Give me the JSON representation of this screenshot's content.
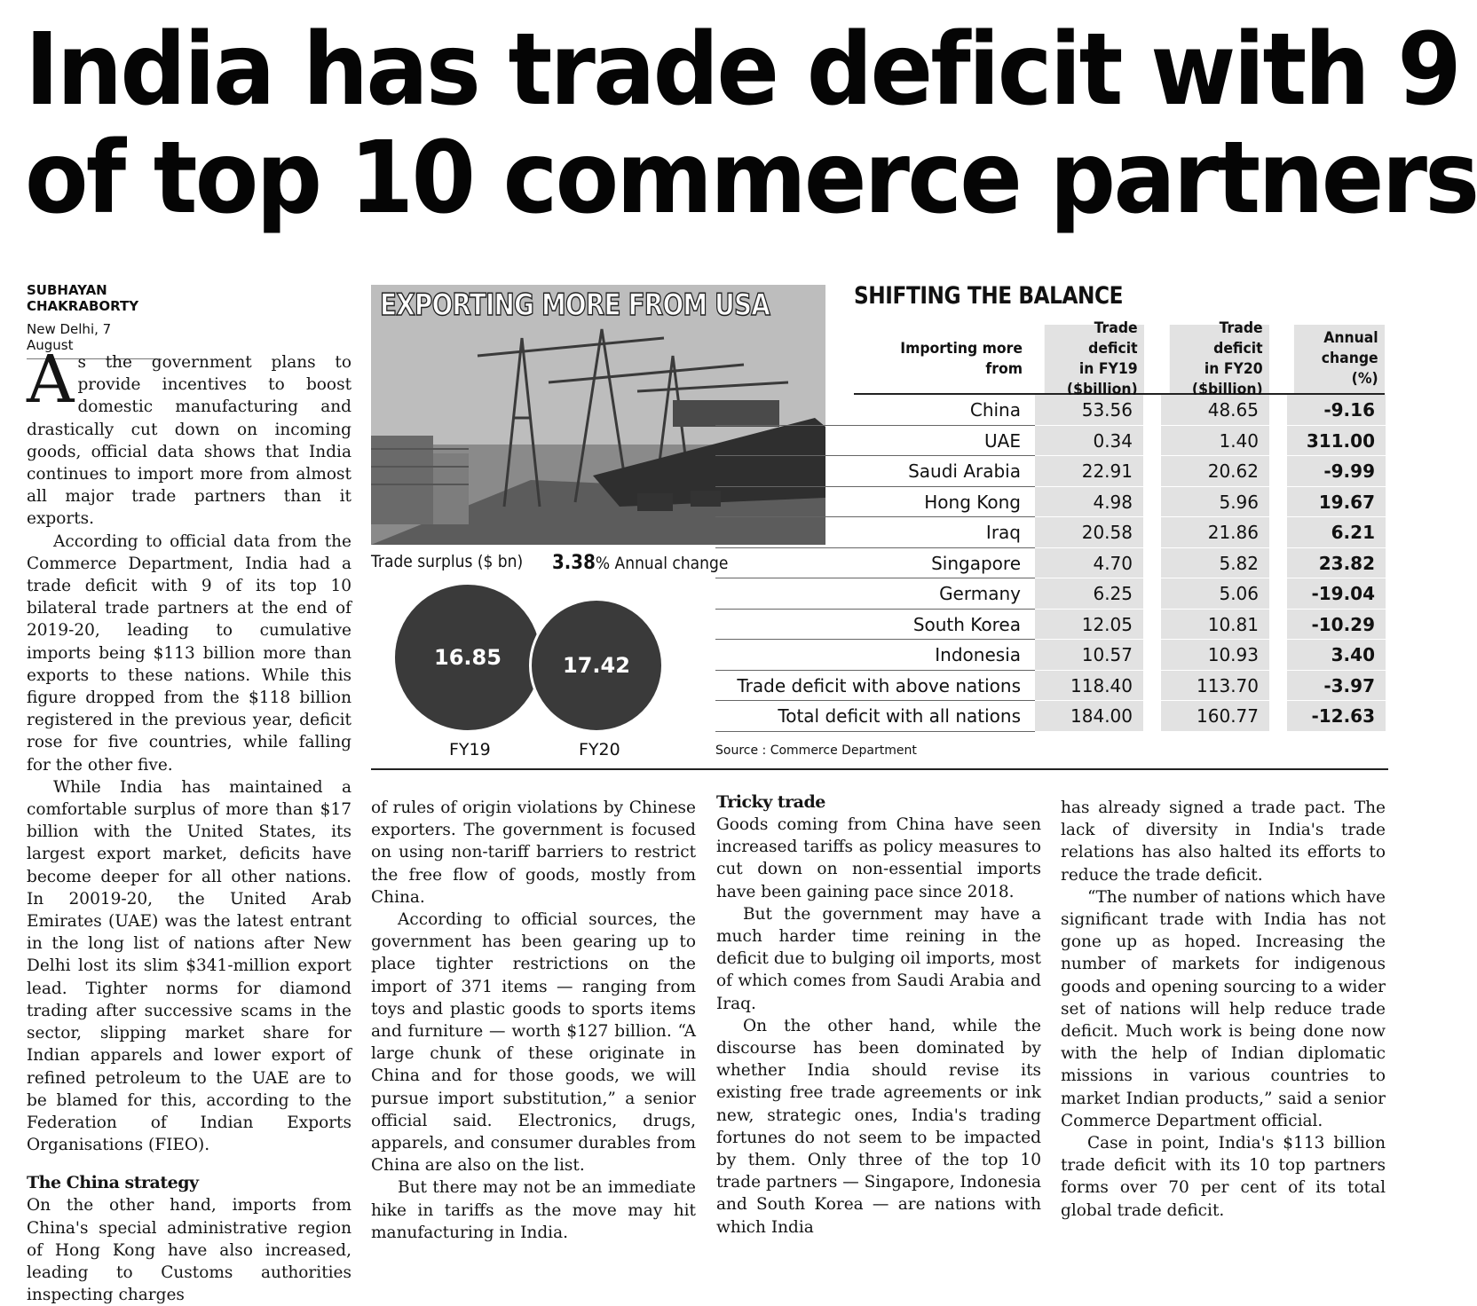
{
  "headline": {
    "line1": "India has trade deficit with 9",
    "line2": "of top 10 commerce partners"
  },
  "byline": {
    "author": "SUBHAYAN CHAKRABORTY",
    "dateline": "New Delhi, 7 August"
  },
  "photo": {
    "title": "EXPORTING MORE FROM USA"
  },
  "surplus": {
    "label": "Trade surplus ($ bn)",
    "change_value": "3.38",
    "change_unit": "%",
    "change_label": " Annual change",
    "fy19_value": "16.85",
    "fy20_value": "17.42",
    "fy19_label": "FY19",
    "fy20_label": "FY20"
  },
  "table": {
    "title": "SHIFTING THE BALANCE",
    "headers": {
      "country": "Importing more from",
      "fy19_l1": "Trade deficit",
      "fy19_l2": "in FY19",
      "fy19_l3": "($billion)",
      "fy20_l1": "Trade deficit",
      "fy20_l2": "in FY20",
      "fy20_l3": "($billion)",
      "chg_l1": "Annual",
      "chg_l2": "change",
      "chg_l3": "(%)"
    },
    "rows": [
      {
        "country": "China",
        "fy19": "53.56",
        "fy20": "48.65",
        "change": "-9.16"
      },
      {
        "country": "UAE",
        "fy19": "0.34",
        "fy20": "1.40",
        "change": "311.00"
      },
      {
        "country": "Saudi Arabia",
        "fy19": "22.91",
        "fy20": "20.62",
        "change": "-9.99"
      },
      {
        "country": "Hong Kong",
        "fy19": "4.98",
        "fy20": "5.96",
        "change": "19.67"
      },
      {
        "country": "Iraq",
        "fy19": "20.58",
        "fy20": "21.86",
        "change": "6.21"
      },
      {
        "country": "Singapore",
        "fy19": "4.70",
        "fy20": "5.82",
        "change": "23.82"
      },
      {
        "country": "Germany",
        "fy19": "6.25",
        "fy20": "5.06",
        "change": "-19.04"
      },
      {
        "country": "South Korea",
        "fy19": "12.05",
        "fy20": "10.81",
        "change": "-10.29"
      },
      {
        "country": "Indonesia",
        "fy19": "10.57",
        "fy20": "10.93",
        "change": "3.40"
      },
      {
        "country": "Trade deficit with above nations",
        "fy19": "118.40",
        "fy20": "113.70",
        "change": "-3.97"
      },
      {
        "country": "Total deficit with all nations",
        "fy19": "184.00",
        "fy20": "160.77",
        "change": "-12.63"
      }
    ],
    "source": "Source : Commerce Department"
  },
  "article": {
    "col1": {
      "dropcap": "A",
      "p1": "s the government plans to provide incentives to boost domestic manufacturing and drastically cut down on incoming goods, official data shows that India continues to import more from almost all major trade partners than it exports.",
      "p2": "According to official data from the Commerce Department, India had a trade deficit with 9 of its top 10 bilateral trade partners at the end of 2019-20, leading to cumulative imports being $113 billion more than exports to these nations. While this figure dropped from the $118 billion registered in the previous year, deficit rose for five countries, while falling for the other five.",
      "p3": "While India has maintained a comfortable surplus of more than $17 billion with the United States, its largest export market, deficits have become deeper for all other nations. In 20019-20, the United Arab Emirates (UAE) was the latest entrant in the long list of nations after New Delhi lost its slim $341-million export lead. Tighter norms for diamond trading after successive scams in the sector, slipping market share for Indian apparels and lower export of refined petroleum to the UAE are to be blamed for this, according to the Federation of Indian Exports Organisations (FIEO).",
      "subhead": "The China strategy",
      "p4": "On the other hand, imports from China's special administrative region of Hong Kong have also increased, leading to Customs authorities inspecting charges"
    },
    "col2": {
      "p1": "of rules of origin violations by Chinese exporters. The government is focused on using non-tariff barriers to restrict the free flow of goods, mostly from China.",
      "p2": "According to official sources, the government has been gearing up to place tighter restrictions on the import of 371 items — ranging from toys and plastic goods to sports items and furniture — worth $127 billion. “A large chunk of these originate in China and for those goods, we will pursue import substitution,” a senior official said. Electronics, drugs, apparels, and consumer durables from China are also on the list.",
      "p3": "But there may not be an immediate hike in tariffs as the move may hit manufacturing in India."
    },
    "col3": {
      "subhead": "Tricky trade",
      "p1": "Goods coming from China have seen increased tariffs as policy measures to cut down on non-essential imports have been gaining pace since 2018.",
      "p2": "But the government may have a much harder time reining in the deficit due to bulging oil imports, most of which comes from Saudi Arabia and Iraq.",
      "p3": "On the other hand, while the discourse has been dominated by whether India should revise its existing free trade agreements or ink new, strategic ones, India's trading fortunes do not seem to be impacted by them. Only three of the top 10 trade partners — Singapore, Indonesia and South Korea — are nations with which India"
    },
    "col4": {
      "p1": "has already signed a trade pact. The lack of diversity in India's trade relations has also halted its efforts to reduce the trade deficit.",
      "p2": "“The number of nations which have significant trade with India has not gone up as hoped. Increasing the number of markets for indigenous goods and opening sourcing to a wider set of nations will help reduce trade deficit. Much work is being done now with the help of Indian diplomatic missions in various countries to market Indian products,” said a senior Commerce Department official.",
      "p3": "Case in point, India's $113 billion trade deficit with its 10 top partners forms over 70 per cent of its total global trade deficit."
    }
  }
}
